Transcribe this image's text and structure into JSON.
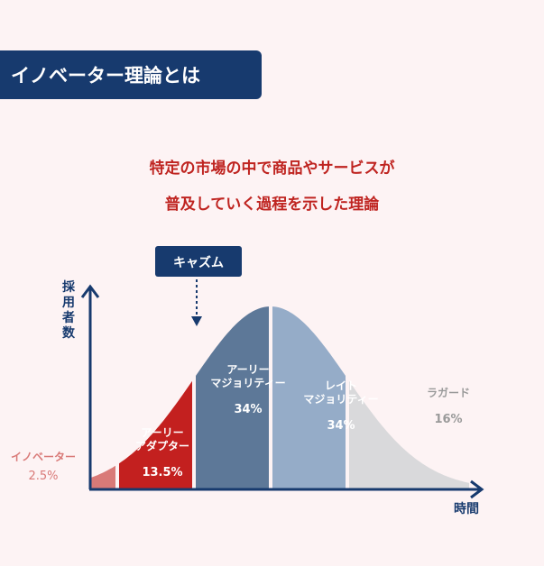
{
  "header": {
    "title": "イノベーター理論とは",
    "subtitle_line1": "特定の市場の中で商品やサービスが",
    "subtitle_line2": "普及していく過程を示した理論"
  },
  "chart_data": {
    "type": "area",
    "xlabel": "時間",
    "ylabel": "採用者数",
    "annotation": "キャズム",
    "segments": [
      {
        "name_lines": [
          "イノベーター"
        ],
        "percent_label": "2.5%",
        "value": 2.5,
        "color": "#d97a78",
        "label_color": "#d97a78"
      },
      {
        "name_lines": [
          "アーリー",
          "アダプター"
        ],
        "percent_label": "13.5%",
        "value": 13.5,
        "color": "#c3201f",
        "label_color": "#ffffff"
      },
      {
        "name_lines": [
          "アーリー",
          "マジョリティー"
        ],
        "percent_label": "34%",
        "value": 34,
        "color": "#5d7898",
        "label_color": "#ffffff"
      },
      {
        "name_lines": [
          "レイト",
          "マジョリティー"
        ],
        "percent_label": "34%",
        "value": 34,
        "color": "#95acc8",
        "label_color": "#ffffff"
      },
      {
        "name_lines": [
          "ラガード"
        ],
        "percent_label": "16%",
        "value": 16,
        "color": "#d9d9db",
        "label_color": "#9a9a9a"
      }
    ],
    "axis_color": "#173a6e",
    "background": "#fdf3f4"
  }
}
